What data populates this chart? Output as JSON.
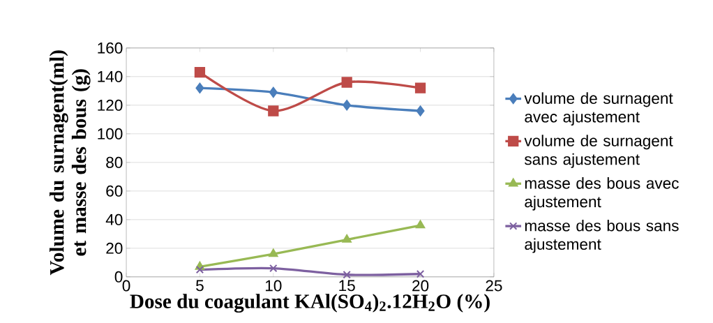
{
  "chart_data": {
    "type": "line",
    "xlabel": "Dose du coagulant  KAl(SO$_{4}$)$_{2}$.12H$_{2}$O (%)",
    "ylabel": "Volume du surnagent(ml) et masse des bous (g)",
    "x": [
      5,
      10,
      15,
      20
    ],
    "series": [
      {
        "name": "volume de surnagent avec ajustement",
        "color": "#4a7ebb",
        "marker": "diamond",
        "values": [
          132,
          129,
          120,
          116
        ]
      },
      {
        "name": "volume de surnagent sans ajustement",
        "color": "#be4b48",
        "marker": "square",
        "values": [
          143,
          116,
          136,
          132
        ]
      },
      {
        "name": "masse des bous avec ajustement",
        "color": "#98b954",
        "marker": "triangle",
        "values": [
          7,
          16,
          26,
          36
        ]
      },
      {
        "name": "masse des bous sans ajustement",
        "color": "#7d60a0",
        "marker": "cross",
        "values": [
          5,
          6,
          1.5,
          2
        ]
      }
    ],
    "xlim": [
      0,
      25
    ],
    "xticks": [
      0,
      5,
      10,
      15,
      20,
      25
    ],
    "ylim": [
      0,
      160
    ],
    "yticks": [
      0,
      20,
      40,
      60,
      80,
      100,
      120,
      140,
      160
    ],
    "grid": "y",
    "legend": "right"
  }
}
